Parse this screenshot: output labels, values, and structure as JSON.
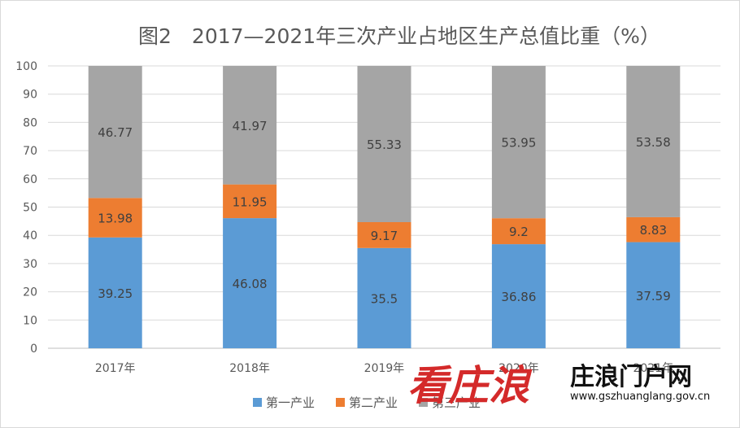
{
  "chart_data": {
    "type": "bar",
    "stacked": true,
    "title": "图2　2017—2021年三次产业占地区生产总值比重（%）",
    "categories": [
      "2017年",
      "2018年",
      "2019年",
      "2020年",
      "2021年"
    ],
    "series": [
      {
        "name": "第一产业",
        "color": "#5b9bd5",
        "values": [
          39.25,
          46.08,
          35.5,
          36.86,
          37.59
        ]
      },
      {
        "name": "第二产业",
        "color": "#ed7d31",
        "values": [
          13.98,
          11.95,
          9.17,
          9.2,
          8.83
        ]
      },
      {
        "name": "第三产业",
        "color": "#a5a5a5",
        "values": [
          46.77,
          41.97,
          55.33,
          53.95,
          53.58
        ]
      }
    ],
    "ylim": [
      0,
      100
    ],
    "yticks": [
      0,
      10,
      20,
      30,
      40,
      50,
      60,
      70,
      80,
      90,
      100
    ],
    "grid": true,
    "legend": "bottom"
  },
  "watermark": {
    "brand_red": "看庄浪",
    "brand_black": "庄浪门户网",
    "url": "www.gszhuanglang.gov.cn",
    "colors": {
      "red": "#d42a2a",
      "black": "#111111"
    }
  }
}
